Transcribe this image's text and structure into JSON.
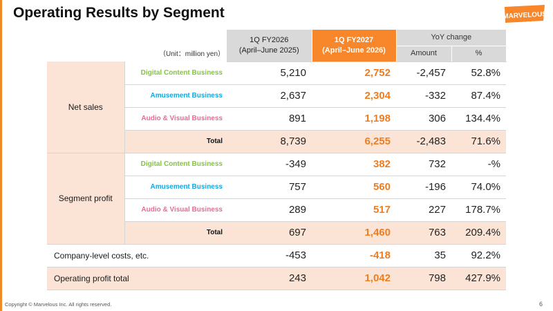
{
  "slide": {
    "title": "Operating Results by Segment",
    "unit": "（Unit：million yen）",
    "logo_text": "MARVELOUS",
    "footer": "Copyright © Marvelous Inc. All rights reserved.",
    "page_number": "6"
  },
  "colors": {
    "accent_orange": "#f7872a",
    "highlight_bg": "#fbe4d6",
    "digital_content": "#84c441",
    "amusement": "#15a7dc",
    "audio_visual": "#ee6896"
  },
  "table": {
    "headers": {
      "prev": "1Q FY2026\n(April–June 2025)",
      "curr": "1Q FY2027\n(April–June 2026)",
      "yoy": "YoY change",
      "amount": "Amount",
      "pct": "%"
    },
    "net_sales": {
      "label": "Net sales",
      "rows": [
        {
          "segment": "Digital Content Business",
          "prev": "5,210",
          "curr": "2,752",
          "amount": "-2,457",
          "pct": "52.8%"
        },
        {
          "segment": "Amusement Business",
          "prev": "2,637",
          "curr": "2,304",
          "amount": "-332",
          "pct": "87.4%"
        },
        {
          "segment": "Audio & Visual Business",
          "prev": "891",
          "curr": "1,198",
          "amount": "306",
          "pct": "134.4%"
        },
        {
          "segment": "Total",
          "prev": "8,739",
          "curr": "6,255",
          "amount": "-2,483",
          "pct": "71.6%"
        }
      ]
    },
    "segment_profit": {
      "label": "Segment profit",
      "rows": [
        {
          "segment": "Digital Content Business",
          "prev": "-349",
          "curr": "382",
          "amount": "732",
          "pct": "-%"
        },
        {
          "segment": "Amusement Business",
          "prev": "757",
          "curr": "560",
          "amount": "-196",
          "pct": "74.0%"
        },
        {
          "segment": "Audio & Visual Business",
          "prev": "289",
          "curr": "517",
          "amount": "227",
          "pct": "178.7%"
        },
        {
          "segment": "Total",
          "prev": "697",
          "curr": "1,460",
          "amount": "763",
          "pct": "209.4%"
        }
      ]
    },
    "company_costs": {
      "label": "Company-level costs, etc.",
      "prev": "-453",
      "curr": "-418",
      "amount": "35",
      "pct": "92.2%"
    },
    "operating_profit": {
      "label": "Operating profit total",
      "prev": "243",
      "curr": "1,042",
      "amount": "798",
      "pct": "427.9%"
    }
  }
}
